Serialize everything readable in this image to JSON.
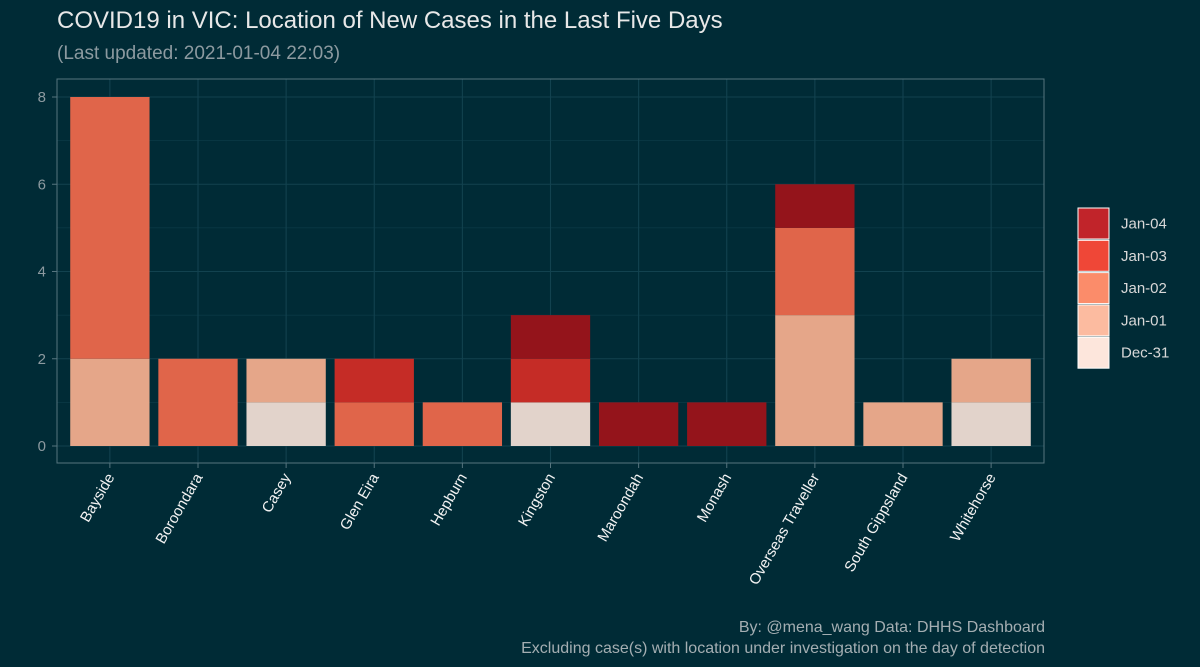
{
  "title": "COVID19 in VIC: Location of New Cases in the Last Five Days",
  "subtitle": "(Last updated: 2021-01-04 22:03)",
  "caption": {
    "line1": "By: @mena_wang  Data: DHHS Dashboard",
    "line2": "Excluding case(s) with location under investigation on the day of detection"
  },
  "chart_data": {
    "type": "bar",
    "stacked": true,
    "categories": [
      "Bayside",
      "Boroondara",
      "Casey",
      "Glen Eira",
      "Hepburn",
      "Kingston",
      "Maroondah",
      "Monash",
      "Overseas Traveller",
      "South Gippsland",
      "Whitehorse"
    ],
    "series": [
      {
        "name": "Dec-31",
        "color": "#e2d3cb",
        "legend_color": "#fde6dc",
        "values": [
          0,
          0,
          1,
          0,
          0,
          1,
          0,
          0,
          0,
          0,
          1
        ]
      },
      {
        "name": "Jan-01",
        "color": "#e5a689",
        "legend_color": "#fcbba0",
        "values": [
          2,
          0,
          1,
          0,
          0,
          0,
          0,
          0,
          3,
          1,
          1
        ]
      },
      {
        "name": "Jan-02",
        "color": "#e0654a",
        "legend_color": "#fb8c6a",
        "values": [
          6,
          2,
          0,
          1,
          1,
          0,
          0,
          0,
          2,
          0,
          0
        ]
      },
      {
        "name": "Jan-03",
        "color": "#c52c26",
        "legend_color": "#ef4737",
        "values": [
          0,
          0,
          0,
          1,
          0,
          1,
          0,
          0,
          0,
          0,
          0
        ]
      },
      {
        "name": "Jan-04",
        "color": "#94141b",
        "legend_color": "#c1242a",
        "values": [
          0,
          0,
          0,
          0,
          0,
          1,
          1,
          1,
          1,
          0,
          0
        ]
      }
    ],
    "legend_order": [
      "Jan-04",
      "Jan-03",
      "Jan-02",
      "Jan-01",
      "Dec-31"
    ],
    "legend_position": "right",
    "ylim": [
      0,
      8
    ],
    "yticks": [
      0,
      2,
      4,
      6,
      8
    ],
    "xlabel": "",
    "ylabel": "",
    "grid": true,
    "colors": {
      "background": "#002b36",
      "grid": "#12424f",
      "axis": "#56757f"
    }
  }
}
